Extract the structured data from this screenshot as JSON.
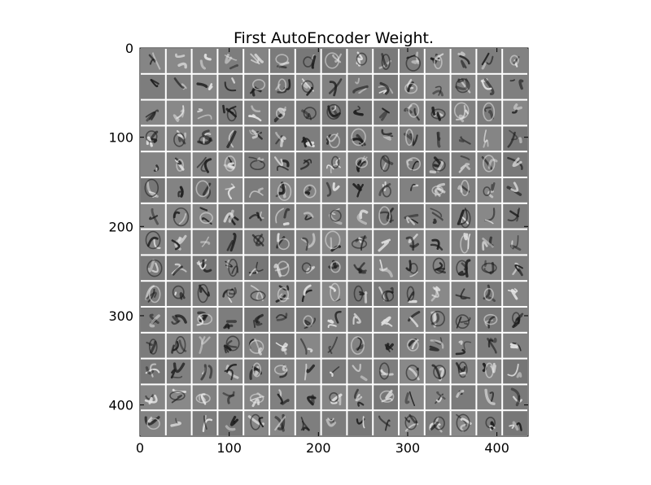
{
  "figure": {
    "title": "First AutoEncoder Weight.",
    "image_description_kind": "weight-tile-mosaic",
    "grid": {
      "rows": 15,
      "cols": 15
    },
    "colors": {
      "background": "#ffffff",
      "tile_base": "#808080",
      "separator": "#ffffff",
      "stroke_dark": "#1a1a1a",
      "stroke_light": "#e6e6e6",
      "axis": "#000000"
    },
    "axes": {
      "x": {
        "range": [
          0,
          435
        ],
        "ticks": [
          0,
          100,
          200,
          300,
          400
        ],
        "tick_labels": [
          "0",
          "100",
          "200",
          "300",
          "400"
        ]
      },
      "y": {
        "range": [
          0,
          435
        ],
        "inverted": true,
        "ticks": [
          0,
          100,
          200,
          300,
          400
        ],
        "tick_labels": [
          "0",
          "100",
          "200",
          "300",
          "400"
        ]
      }
    }
  }
}
